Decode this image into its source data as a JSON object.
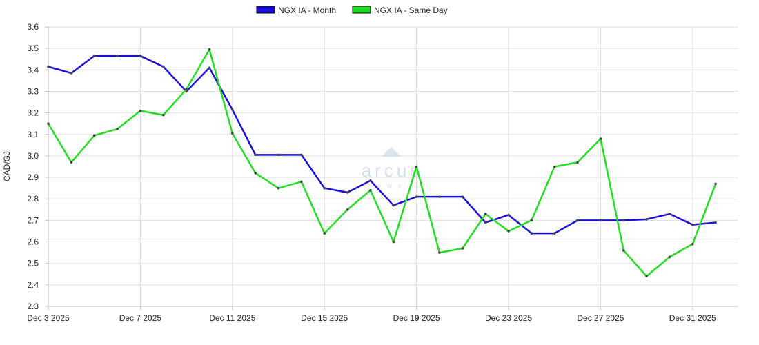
{
  "chart_data": {
    "type": "line",
    "title": "",
    "xlabel": "",
    "ylabel": "CAD/GJ",
    "ylim": [
      2.3,
      3.6
    ],
    "yticks": [
      "2.3",
      "2.4",
      "2.5",
      "2.6",
      "2.7",
      "2.8",
      "2.9",
      "3.0",
      "3.1",
      "3.2",
      "3.3",
      "3.4",
      "3.5",
      "3.6"
    ],
    "x": [
      "2025-12-03",
      "2025-12-04",
      "2025-12-05",
      "2025-12-06",
      "2025-12-07",
      "2025-12-08",
      "2025-12-09",
      "2025-12-10",
      "2025-12-11",
      "2025-12-12",
      "2025-12-13",
      "2025-12-14",
      "2025-12-15",
      "2025-12-16",
      "2025-12-17",
      "2025-12-18",
      "2025-12-19",
      "2025-12-20",
      "2025-12-21",
      "2025-12-22",
      "2025-12-23",
      "2025-12-24",
      "2025-12-25",
      "2025-12-26",
      "2025-12-27",
      "2025-12-28",
      "2025-12-29",
      "2025-12-30",
      "2025-12-31",
      "2026-01-01"
    ],
    "xticks": [
      {
        "date": "2025-12-03",
        "label": "Dec 3 2025"
      },
      {
        "date": "2025-12-07",
        "label": "Dec 7 2025"
      },
      {
        "date": "2025-12-11",
        "label": "Dec 11 2025"
      },
      {
        "date": "2025-12-15",
        "label": "Dec 15 2025"
      },
      {
        "date": "2025-12-19",
        "label": "Dec 19 2025"
      },
      {
        "date": "2025-12-23",
        "label": "Dec 23 2025"
      },
      {
        "date": "2025-12-27",
        "label": "Dec 27 2025"
      },
      {
        "date": "2025-12-31",
        "label": "Dec 31 2025"
      }
    ],
    "series": [
      {
        "name": "NGX IA - Month",
        "color": "#1a0fd9",
        "values": [
          3.415,
          3.385,
          3.465,
          3.465,
          3.465,
          3.415,
          3.3,
          3.41,
          3.215,
          3.005,
          3.005,
          3.005,
          2.85,
          2.83,
          2.885,
          2.77,
          2.81,
          2.81,
          2.81,
          2.69,
          2.725,
          2.64,
          2.64,
          2.7,
          2.7,
          2.7,
          2.705,
          2.73,
          2.68,
          2.69
        ]
      },
      {
        "name": "NGX IA - Same Day",
        "color": "#22dd22",
        "values": [
          3.15,
          2.97,
          3.095,
          3.125,
          3.21,
          3.19,
          3.31,
          3.495,
          3.105,
          2.92,
          2.85,
          2.88,
          2.64,
          2.75,
          2.84,
          2.6,
          2.95,
          2.55,
          2.57,
          2.73,
          2.65,
          2.7,
          2.95,
          2.97,
          3.08,
          2.56,
          2.44,
          2.53,
          2.59,
          2.87
        ]
      }
    ],
    "legend_position": "top-center",
    "grid": true
  },
  "watermark": {
    "name": "arcus",
    "tagline": "power",
    "color": "#cfdbe6"
  }
}
